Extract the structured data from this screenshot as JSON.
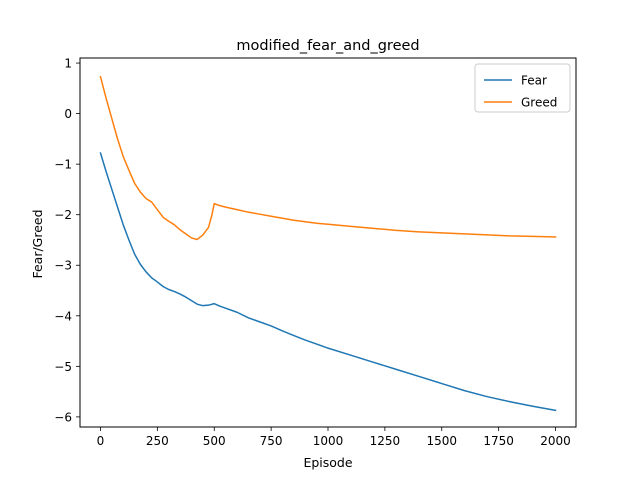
{
  "chart_data": {
    "type": "line",
    "title": "modified_fear_and_greed",
    "xlabel": "Episode",
    "ylabel": "Fear/Greed",
    "xlim": [
      -90,
      2090
    ],
    "ylim": [
      -6.2,
      1.1
    ],
    "xticks": [
      0,
      250,
      500,
      750,
      1000,
      1250,
      1500,
      1750,
      2000
    ],
    "xtick_labels": [
      "0",
      "250",
      "500",
      "750",
      "1000",
      "1250",
      "1500",
      "1750",
      "2000"
    ],
    "yticks": [
      1,
      0,
      -1,
      -2,
      -3,
      -4,
      -5,
      -6
    ],
    "ytick_labels": [
      "1",
      "0",
      "−1",
      "−2",
      "−3",
      "−4",
      "−5",
      "−6"
    ],
    "grid": false,
    "legend_position": "top-right",
    "series": [
      {
        "name": "Fear",
        "color": "#1f77b4",
        "x": [
          0,
          25,
          50,
          75,
          100,
          125,
          150,
          175,
          200,
          225,
          250,
          275,
          300,
          325,
          350,
          375,
          400,
          425,
          450,
          475,
          500,
          525,
          550,
          600,
          650,
          700,
          750,
          800,
          850,
          900,
          950,
          1000,
          1100,
          1200,
          1300,
          1400,
          1500,
          1600,
          1700,
          1800,
          1900,
          2000
        ],
        "y": [
          -0.78,
          -1.15,
          -1.5,
          -1.85,
          -2.2,
          -2.5,
          -2.78,
          -2.98,
          -3.13,
          -3.25,
          -3.33,
          -3.42,
          -3.48,
          -3.52,
          -3.57,
          -3.63,
          -3.7,
          -3.77,
          -3.8,
          -3.79,
          -3.76,
          -3.81,
          -3.85,
          -3.93,
          -4.04,
          -4.12,
          -4.2,
          -4.3,
          -4.39,
          -4.48,
          -4.56,
          -4.64,
          -4.78,
          -4.92,
          -5.06,
          -5.2,
          -5.34,
          -5.48,
          -5.6,
          -5.7,
          -5.79,
          -5.87
        ]
      },
      {
        "name": "Greed",
        "color": "#ff7f0e",
        "x": [
          0,
          25,
          50,
          75,
          100,
          125,
          150,
          175,
          200,
          225,
          250,
          275,
          300,
          325,
          350,
          375,
          400,
          425,
          450,
          475,
          490,
          500,
          510,
          525,
          550,
          600,
          650,
          700,
          750,
          800,
          850,
          900,
          950,
          1000,
          1100,
          1200,
          1300,
          1400,
          1500,
          1600,
          1700,
          1800,
          1900,
          2000
        ],
        "y": [
          0.73,
          0.3,
          -0.1,
          -0.5,
          -0.85,
          -1.12,
          -1.38,
          -1.55,
          -1.68,
          -1.75,
          -1.9,
          -2.05,
          -2.13,
          -2.2,
          -2.3,
          -2.38,
          -2.46,
          -2.49,
          -2.4,
          -2.25,
          -2.0,
          -1.78,
          -1.8,
          -1.82,
          -1.85,
          -1.9,
          -1.95,
          -1.99,
          -2.03,
          -2.07,
          -2.11,
          -2.14,
          -2.17,
          -2.19,
          -2.23,
          -2.27,
          -2.31,
          -2.34,
          -2.36,
          -2.38,
          -2.4,
          -2.42,
          -2.43,
          -2.44
        ]
      }
    ]
  }
}
